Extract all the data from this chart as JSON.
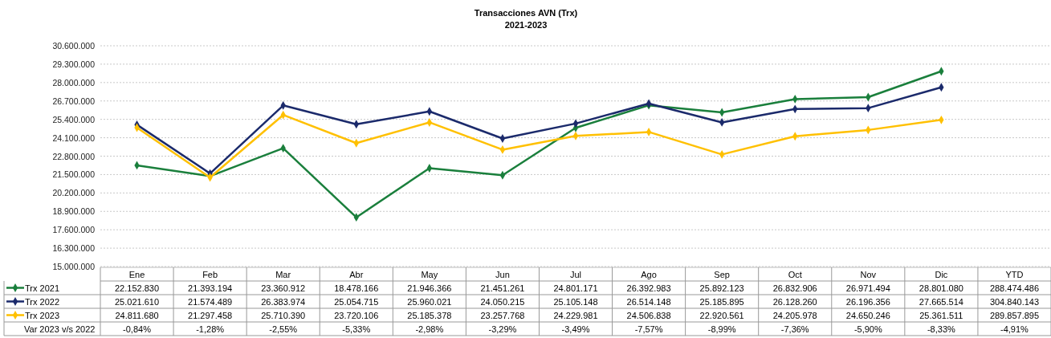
{
  "chart_data": {
    "type": "line",
    "title": "Transacciones  AVN (Trx)",
    "subtitle": "2021-2023",
    "categories": [
      "Ene",
      "Feb",
      "Mar",
      "Abr",
      "May",
      "Jun",
      "Jul",
      "Ago",
      "Sep",
      "Oct",
      "Nov",
      "Dic",
      "YTD"
    ],
    "series": [
      {
        "name": "Trx 2021",
        "color": "#1a7f3c",
        "values": [
          22152830,
          21393194,
          23360912,
          18478166,
          21946366,
          21451261,
          24801171,
          26392983,
          25892123,
          26832906,
          26971494,
          28801080,
          null
        ],
        "value_labels": [
          "22.152.830",
          "21.393.194",
          "23.360.912",
          "18.478.166",
          "21.946.366",
          "21.451.261",
          "24.801.171",
          "26.392.983",
          "25.892.123",
          "26.832.906",
          "26.971.494",
          "28.801.080",
          "288.474.486"
        ]
      },
      {
        "name": "Trx 2022",
        "color": "#1b2a6b",
        "values": [
          25021610,
          21574489,
          26383974,
          25054715,
          25960021,
          24050215,
          25105148,
          26514148,
          25185895,
          26128260,
          26196356,
          27665514,
          null
        ],
        "value_labels": [
          "25.021.610",
          "21.574.489",
          "26.383.974",
          "25.054.715",
          "25.960.021",
          "24.050.215",
          "25.105.148",
          "26.514.148",
          "25.185.895",
          "26.128.260",
          "26.196.356",
          "27.665.514",
          "304.840.143"
        ]
      },
      {
        "name": "Trx 2023",
        "color": "#ffc000",
        "values": [
          24811680,
          21297458,
          25710390,
          23720106,
          25185378,
          23257768,
          24229981,
          24506838,
          22920561,
          24205978,
          24650246,
          25361511,
          null
        ],
        "value_labels": [
          "24.811.680",
          "21.297.458",
          "25.710.390",
          "23.720.106",
          "25.185.378",
          "23.257.768",
          "24.229.981",
          "24.506.838",
          "22.920.561",
          "24.205.978",
          "24.650.246",
          "25.361.511",
          "289.857.895"
        ]
      }
    ],
    "annotations": [
      "Var 2023 v/s 2022",
      "-0,84%",
      "-1,28%",
      "-2,55%",
      "-5,33%",
      "-2,98%",
      "-3,29%",
      "-3,49%",
      "-7,57%",
      "-8,99%",
      "-7,36%",
      "-5,90%",
      "-8,33%",
      "-4,91%"
    ],
    "ylim": [
      15000000,
      30600000
    ],
    "yticks": [
      {
        "value": 15000000,
        "label": "15.000.000"
      },
      {
        "value": 16300000,
        "label": "16.300.000"
      },
      {
        "value": 17600000,
        "label": "17.600.000"
      },
      {
        "value": 18900000,
        "label": "18.900.000"
      },
      {
        "value": 20200000,
        "label": "20.200.000"
      },
      {
        "value": 21500000,
        "label": "21.500.000"
      },
      {
        "value": 22800000,
        "label": "22.800.000"
      },
      {
        "value": 24100000,
        "label": "24.100.000"
      },
      {
        "value": 25400000,
        "label": "25.400.000"
      },
      {
        "value": 26700000,
        "label": "26.700.000"
      },
      {
        "value": 28000000,
        "label": "28.000.000"
      },
      {
        "value": 29300000,
        "label": "29.300.000"
      },
      {
        "value": 30600000,
        "label": "30.600.000"
      }
    ],
    "grid": "y",
    "legend": "bottom left",
    "marker": "diamond",
    "line_style": "solid"
  }
}
